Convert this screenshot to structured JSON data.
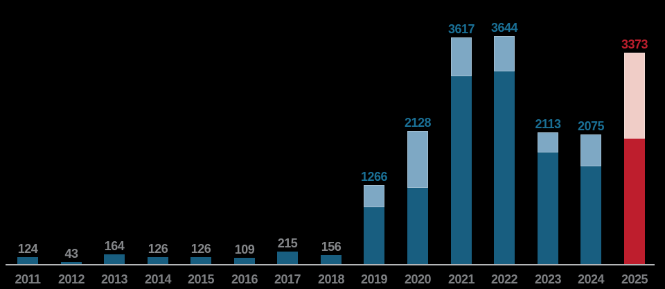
{
  "chart_data": {
    "type": "bar",
    "subtype": "stacked",
    "title": "",
    "xlabel": "",
    "ylabel": "",
    "legend": "none",
    "grid": false,
    "background": "#000000",
    "ylim_px_scale_note": "segments for 2019-2025 are estimated from pixel heights; totals are the printed data labels",
    "categories": [
      "2011",
      "2012",
      "2013",
      "2014",
      "2015",
      "2016",
      "2017",
      "2018",
      "2019",
      "2020",
      "2021",
      "2022",
      "2023",
      "2024",
      "2025"
    ],
    "totals": [
      124,
      43,
      164,
      126,
      126,
      109,
      215,
      156,
      1266,
      2128,
      3617,
      3644,
      2113,
      2075,
      3373
    ],
    "series": [
      {
        "name": "primary-segment-dark",
        "values": [
          124,
          43,
          164,
          126,
          126,
          109,
          215,
          156,
          916,
          1225,
          3002,
          3080,
          1788,
          1567,
          2009
        ]
      },
      {
        "name": "secondary-segment-light",
        "values": [
          0,
          0,
          0,
          0,
          0,
          0,
          0,
          0,
          350,
          903,
          615,
          564,
          325,
          508,
          1364
        ]
      }
    ],
    "bars": [
      {
        "year": "2011",
        "total": 124,
        "primary": 124,
        "secondary": 0,
        "scheme": "blue",
        "label_color": "gray"
      },
      {
        "year": "2012",
        "total": 43,
        "primary": 43,
        "secondary": 0,
        "scheme": "blue",
        "label_color": "gray"
      },
      {
        "year": "2013",
        "total": 164,
        "primary": 164,
        "secondary": 0,
        "scheme": "blue",
        "label_color": "gray"
      },
      {
        "year": "2014",
        "total": 126,
        "primary": 126,
        "secondary": 0,
        "scheme": "blue",
        "label_color": "gray"
      },
      {
        "year": "2015",
        "total": 126,
        "primary": 126,
        "secondary": 0,
        "scheme": "blue",
        "label_color": "gray"
      },
      {
        "year": "2016",
        "total": 109,
        "primary": 109,
        "secondary": 0,
        "scheme": "blue",
        "label_color": "gray"
      },
      {
        "year": "2017",
        "total": 215,
        "primary": 215,
        "secondary": 0,
        "scheme": "blue",
        "label_color": "gray"
      },
      {
        "year": "2018",
        "total": 156,
        "primary": 156,
        "secondary": 0,
        "scheme": "blue",
        "label_color": "gray"
      },
      {
        "year": "2019",
        "total": 1266,
        "primary": 916,
        "secondary": 350,
        "scheme": "blue",
        "label_color": "teal"
      },
      {
        "year": "2020",
        "total": 2128,
        "primary": 1225,
        "secondary": 903,
        "scheme": "blue",
        "label_color": "teal"
      },
      {
        "year": "2021",
        "total": 3617,
        "primary": 3002,
        "secondary": 615,
        "scheme": "blue",
        "label_color": "teal"
      },
      {
        "year": "2022",
        "total": 3644,
        "primary": 3080,
        "secondary": 564,
        "scheme": "blue",
        "label_color": "teal"
      },
      {
        "year": "2023",
        "total": 2113,
        "primary": 1788,
        "secondary": 325,
        "scheme": "blue",
        "label_color": "teal"
      },
      {
        "year": "2024",
        "total": 2075,
        "primary": 1567,
        "secondary": 508,
        "scheme": "blue",
        "label_color": "teal"
      },
      {
        "year": "2025",
        "total": 3373,
        "primary": 2009,
        "secondary": 1364,
        "scheme": "red",
        "label_color": "red"
      }
    ]
  },
  "colors": {
    "background": "#000000",
    "bar_dark_blue": "#185E80",
    "bar_light_blue": "#7EA8C4",
    "bar_dark_red": "#BE1E2D",
    "bar_light_pink": "#F0CDC7",
    "label_gray": "#85878A",
    "label_teal": "#1A7096",
    "label_red": "#BE1E2D",
    "axis_tick_gray": "#7E8083",
    "axis_line_gray": "#B5B7B9"
  }
}
